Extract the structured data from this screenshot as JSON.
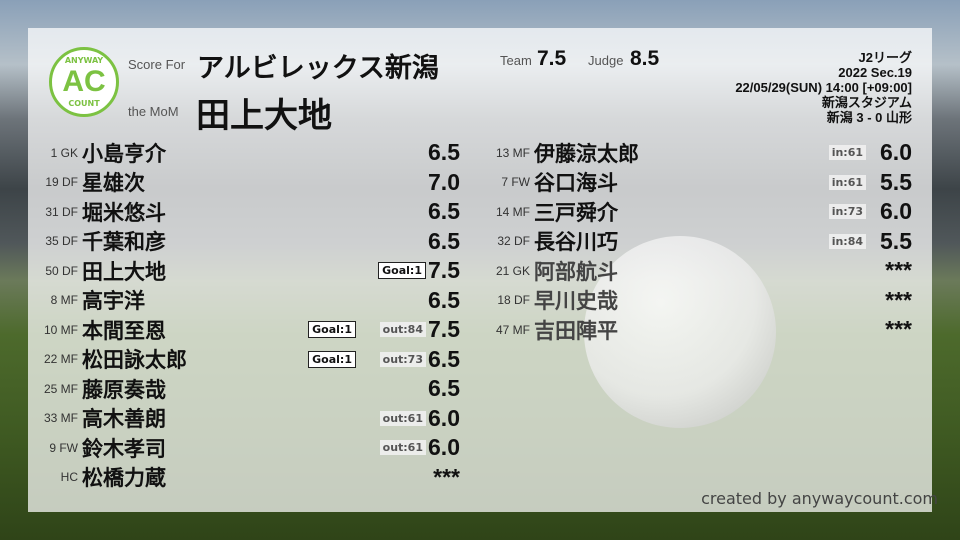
{
  "header": {
    "score_for_label": "Score For",
    "team_name": "アルビレックス新潟",
    "mom_label": "the MoM",
    "mom_name": "田上大地",
    "team_label": "Team",
    "team_score": "7.5",
    "judge_label": "Judge",
    "judge_score": "8.5"
  },
  "logo": {
    "top": "ANYWAY",
    "mid": "AC",
    "bottom": "COUNT",
    "color": "#7cc242"
  },
  "match": {
    "league": "J2リーグ",
    "section": "2022 Sec.19",
    "datetime": "22/05/29(SUN) 14:00 [+09:00]",
    "stadium": "新潟スタジアム",
    "result": "新潟 3 - 0 山形"
  },
  "starters": [
    {
      "num": "1 GK",
      "name": "小島亨介",
      "score": "6.5",
      "goal": "",
      "sub": ""
    },
    {
      "num": "19 DF",
      "name": "星雄次",
      "score": "7.0",
      "goal": "",
      "sub": ""
    },
    {
      "num": "31 DF",
      "name": "堀米悠斗",
      "score": "6.5",
      "goal": "",
      "sub": ""
    },
    {
      "num": "35 DF",
      "name": "千葉和彦",
      "score": "6.5",
      "goal": "",
      "sub": ""
    },
    {
      "num": "50 DF",
      "name": "田上大地",
      "score": "7.5",
      "goal": "Goal:1",
      "sub": ""
    },
    {
      "num": "8 MF",
      "name": "高宇洋",
      "score": "6.5",
      "goal": "",
      "sub": ""
    },
    {
      "num": "10 MF",
      "name": "本間至恩",
      "score": "7.5",
      "goal": "Goal:1",
      "sub": "out:84"
    },
    {
      "num": "22 MF",
      "name": "松田詠太郎",
      "score": "6.5",
      "goal": "Goal:1",
      "sub": "out:73"
    },
    {
      "num": "25 MF",
      "name": "藤原奏哉",
      "score": "6.5",
      "goal": "",
      "sub": ""
    },
    {
      "num": "33 MF",
      "name": "高木善朗",
      "score": "6.0",
      "goal": "",
      "sub": "out:61"
    },
    {
      "num": "9 FW",
      "name": "鈴木孝司",
      "score": "6.0",
      "goal": "",
      "sub": "out:61"
    },
    {
      "num": "HC",
      "name": "松橋力蔵",
      "score": "***",
      "goal": "",
      "sub": ""
    }
  ],
  "subs": [
    {
      "num": "13 MF",
      "name": "伊藤涼太郎",
      "score": "6.0",
      "sub": "in:61"
    },
    {
      "num": "7 FW",
      "name": "谷口海斗",
      "score": "5.5",
      "sub": "in:61"
    },
    {
      "num": "14 MF",
      "name": "三戸舜介",
      "score": "6.0",
      "sub": "in:73"
    },
    {
      "num": "32 DF",
      "name": "長谷川巧",
      "score": "5.5",
      "sub": "in:84"
    },
    {
      "num": "21 GK",
      "name": "阿部航斗",
      "score": "***",
      "sub": ""
    },
    {
      "num": "18 DF",
      "name": "早川史哉",
      "score": "***",
      "sub": ""
    },
    {
      "num": "47 MF",
      "name": "吉田陣平",
      "score": "***",
      "sub": ""
    }
  ],
  "footer": {
    "credit": "created by anywaycount.com"
  }
}
